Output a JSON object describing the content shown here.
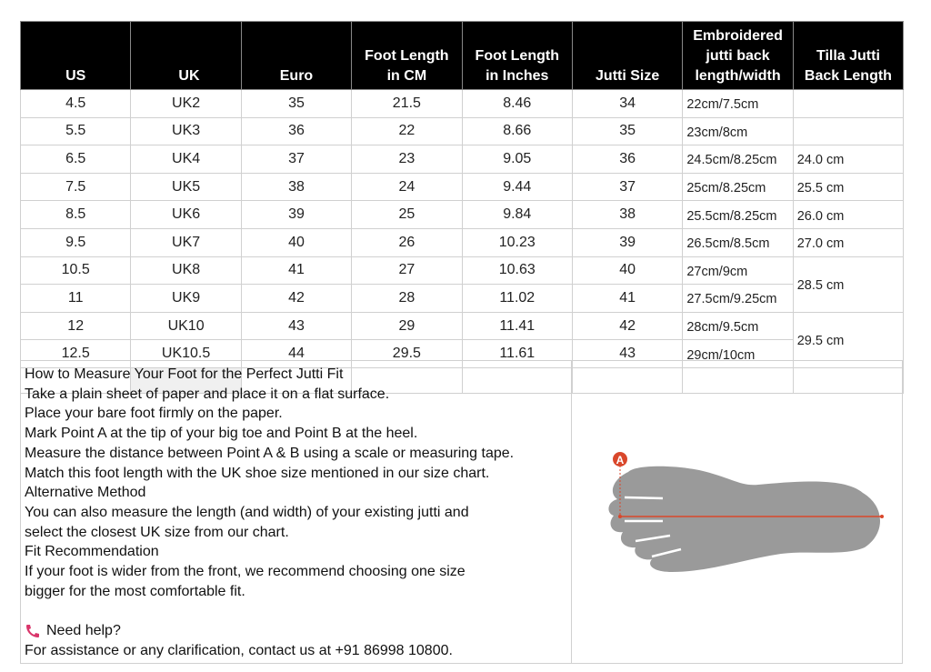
{
  "table": {
    "headers": [
      "US",
      "UK",
      "Euro",
      "Foot Length\nin CM",
      "Foot Length\nin Inches",
      "Jutti Size",
      "Embroidered\njutti back\nlength/width",
      "Tilla Jutti\nBack Length"
    ],
    "rows": [
      [
        "4.5",
        "UK2",
        "35",
        "21.5",
        "8.46",
        "34",
        "22cm/7.5cm"
      ],
      [
        "5.5",
        "UK3",
        "36",
        "22",
        "8.66",
        "35",
        "23cm/8cm"
      ],
      [
        "6.5",
        "UK4",
        "37",
        "23",
        "9.05",
        "36",
        "24.5cm/8.25cm"
      ],
      [
        "7.5",
        "UK5",
        "38",
        "24",
        "9.44",
        "37",
        "25cm/8.25cm"
      ],
      [
        "8.5",
        "UK6",
        "39",
        "25",
        "9.84",
        "38",
        "25.5cm/8.25cm"
      ],
      [
        "9.5",
        "UK7",
        "40",
        "26",
        "10.23",
        "39",
        "26.5cm/8.5cm"
      ],
      [
        "10.5",
        "UK8",
        "41",
        "27",
        "10.63",
        "40",
        "27cm/9cm"
      ],
      [
        "11",
        "UK9",
        "42",
        "28",
        "11.02",
        "41",
        "27.5cm/9.25cm"
      ],
      [
        "12",
        "UK10",
        "43",
        "29",
        "11.41",
        "42",
        "28cm/9.5cm"
      ],
      [
        "12.5",
        "UK10.5",
        "44",
        "29.5",
        "11.61",
        "43",
        "29cm/10cm"
      ]
    ],
    "tilla": [
      {
        "value": "",
        "span": 1
      },
      {
        "value": "",
        "span": 1
      },
      {
        "value": "24.0 cm",
        "span": 1
      },
      {
        "value": "25.5 cm",
        "span": 1
      },
      {
        "value": "26.0 cm",
        "span": 1
      },
      {
        "value": "27.0 cm",
        "span": 1
      },
      {
        "value": "28.5 cm",
        "span": 2
      },
      {
        "value": "29.5 cm",
        "span": 2
      }
    ]
  },
  "info": {
    "lines": [
      "How to Measure Your Foot for the Perfect Jutti Fit",
      "Take a plain sheet of paper and place it on a flat surface.",
      "Place your bare foot firmly on the paper.",
      "Mark Point A at the tip of your big toe and Point B at the heel.",
      "Measure the distance between Point A & B using a scale or measuring tape.",
      "Match this foot length with the UK shoe size mentioned in our size chart.",
      "Alternative Method",
      "You can also measure the length (and width) of your existing jutti and",
      "select the closest UK size from our chart.",
      "Fit Recommendation",
      "If your foot is wider from the front, we recommend choosing one size",
      "bigger for the most comfortable fit."
    ],
    "help_label": "Need help?",
    "contact": "For assistance or any clarification, contact us at +91 86998 10800.",
    "phone_icon": "phone-icon"
  },
  "illustration": {
    "marker_label": "A",
    "foot_color": "#9a9a9a",
    "line_color": "#d9472b"
  }
}
